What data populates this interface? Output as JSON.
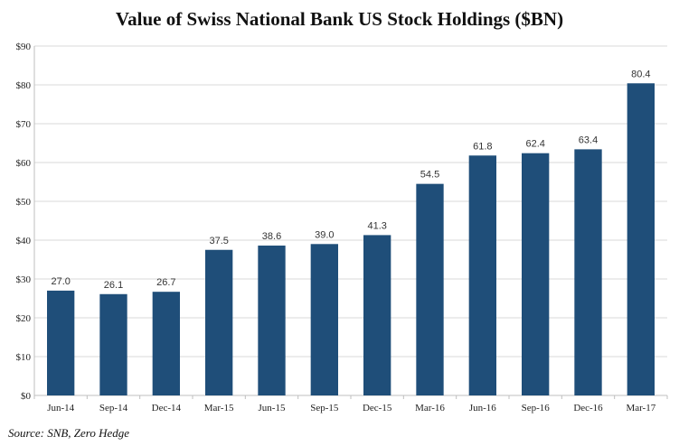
{
  "chart_data": {
    "type": "bar",
    "title": "Value of Swiss National Bank US Stock Holdings ($BN)",
    "categories": [
      "Jun-14",
      "Sep-14",
      "Dec-14",
      "Mar-15",
      "Jun-15",
      "Sep-15",
      "Dec-15",
      "Mar-16",
      "Jun-16",
      "Sep-16",
      "Dec-16",
      "Mar-17"
    ],
    "values": [
      27.0,
      26.1,
      26.7,
      37.5,
      38.6,
      39.0,
      41.3,
      54.5,
      61.8,
      62.4,
      63.4,
      80.4
    ],
    "data_labels": [
      "27.0",
      "26.1",
      "26.7",
      "37.5",
      "38.6",
      "39.0",
      "41.3",
      "54.5",
      "61.8",
      "62.4",
      "63.4",
      "80.4"
    ],
    "ylim": [
      0,
      90
    ],
    "yticks": [
      0,
      10,
      20,
      30,
      40,
      50,
      60,
      70,
      80,
      90
    ],
    "ytick_labels": [
      "$0",
      "$10",
      "$20",
      "$30",
      "$40",
      "$50",
      "$60",
      "$70",
      "$80",
      "$90"
    ],
    "xlabel": "",
    "ylabel": "",
    "grid": true,
    "legend": "none",
    "bar_color": "#1f4e79",
    "gridline_color": "#d9d9d9",
    "source": "Source: SNB, Zero Hedge"
  }
}
